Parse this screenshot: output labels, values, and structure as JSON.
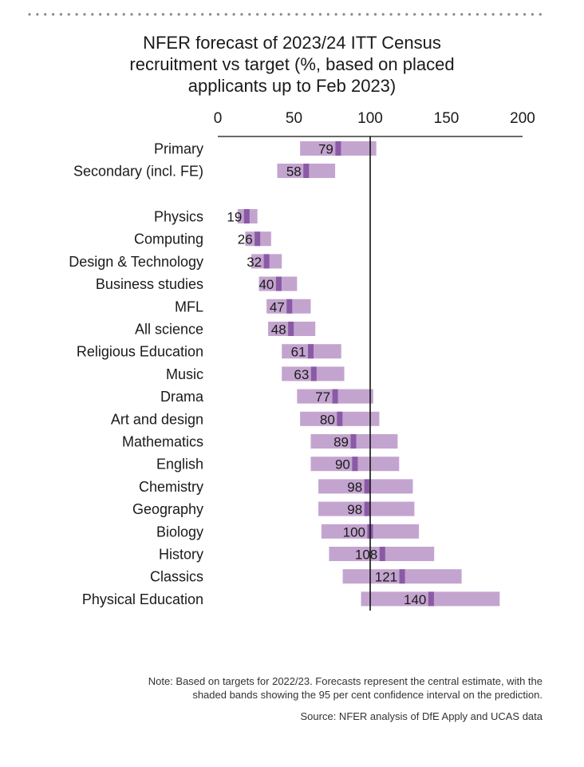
{
  "title_lines": [
    "NFER forecast of 2023/24 ITT Census",
    "recruitment vs target (%, based on placed",
    "applicants up to Feb 2023)"
  ],
  "note_lines": [
    "Note: Based on targets for 2022/23. Forecasts represent the central estimate, with the",
    "shaded bands showing the 95 per cent confidence interval on the prediction."
  ],
  "source": "Source: NFER analysis of DfE Apply and UCAS data",
  "colors": {
    "band": "#c3a4cf",
    "marker": "#8a5aa6",
    "axis": "#111111",
    "dots": "#888888"
  },
  "chart_data": {
    "type": "bar",
    "orientation": "horizontal",
    "xlim": [
      0,
      200
    ],
    "x_ticks": [
      "0",
      "50",
      "100",
      "150",
      "200"
    ],
    "x_tick_values": [
      0,
      50,
      100,
      150,
      200
    ],
    "reference_line": 100,
    "grid": false,
    "categories": [
      "Primary",
      "Secondary (incl. FE)",
      "Physics",
      "Computing",
      "Design & Technology",
      "Business studies",
      "MFL",
      "All science",
      "Religious Education",
      "Music",
      "Drama",
      "Art and design",
      "Mathematics",
      "English",
      "Chemistry",
      "Geography",
      "Biology",
      "History",
      "Classics",
      "Physical Education"
    ],
    "groups": [
      [
        0,
        1
      ],
      [
        2,
        19
      ]
    ],
    "values": [
      79,
      58,
      19,
      26,
      32,
      40,
      47,
      48,
      61,
      63,
      77,
      80,
      89,
      90,
      98,
      98,
      100,
      108,
      121,
      140
    ],
    "value_labels": [
      "79",
      "58",
      "19",
      "26",
      "32",
      "40",
      "47",
      "48",
      "61",
      "63",
      "77",
      "80",
      "89",
      "90",
      "98",
      "98",
      "100",
      "108",
      "121",
      "140"
    ],
    "lower": [
      54,
      39,
      13,
      18,
      22,
      27,
      32,
      33,
      42,
      42,
      52,
      54,
      61,
      61,
      66,
      66,
      68,
      73,
      82,
      94
    ],
    "upper": [
      104,
      77,
      26,
      35,
      42,
      52,
      61,
      64,
      81,
      83,
      102,
      106,
      118,
      119,
      128,
      129,
      132,
      142,
      160,
      185
    ]
  }
}
